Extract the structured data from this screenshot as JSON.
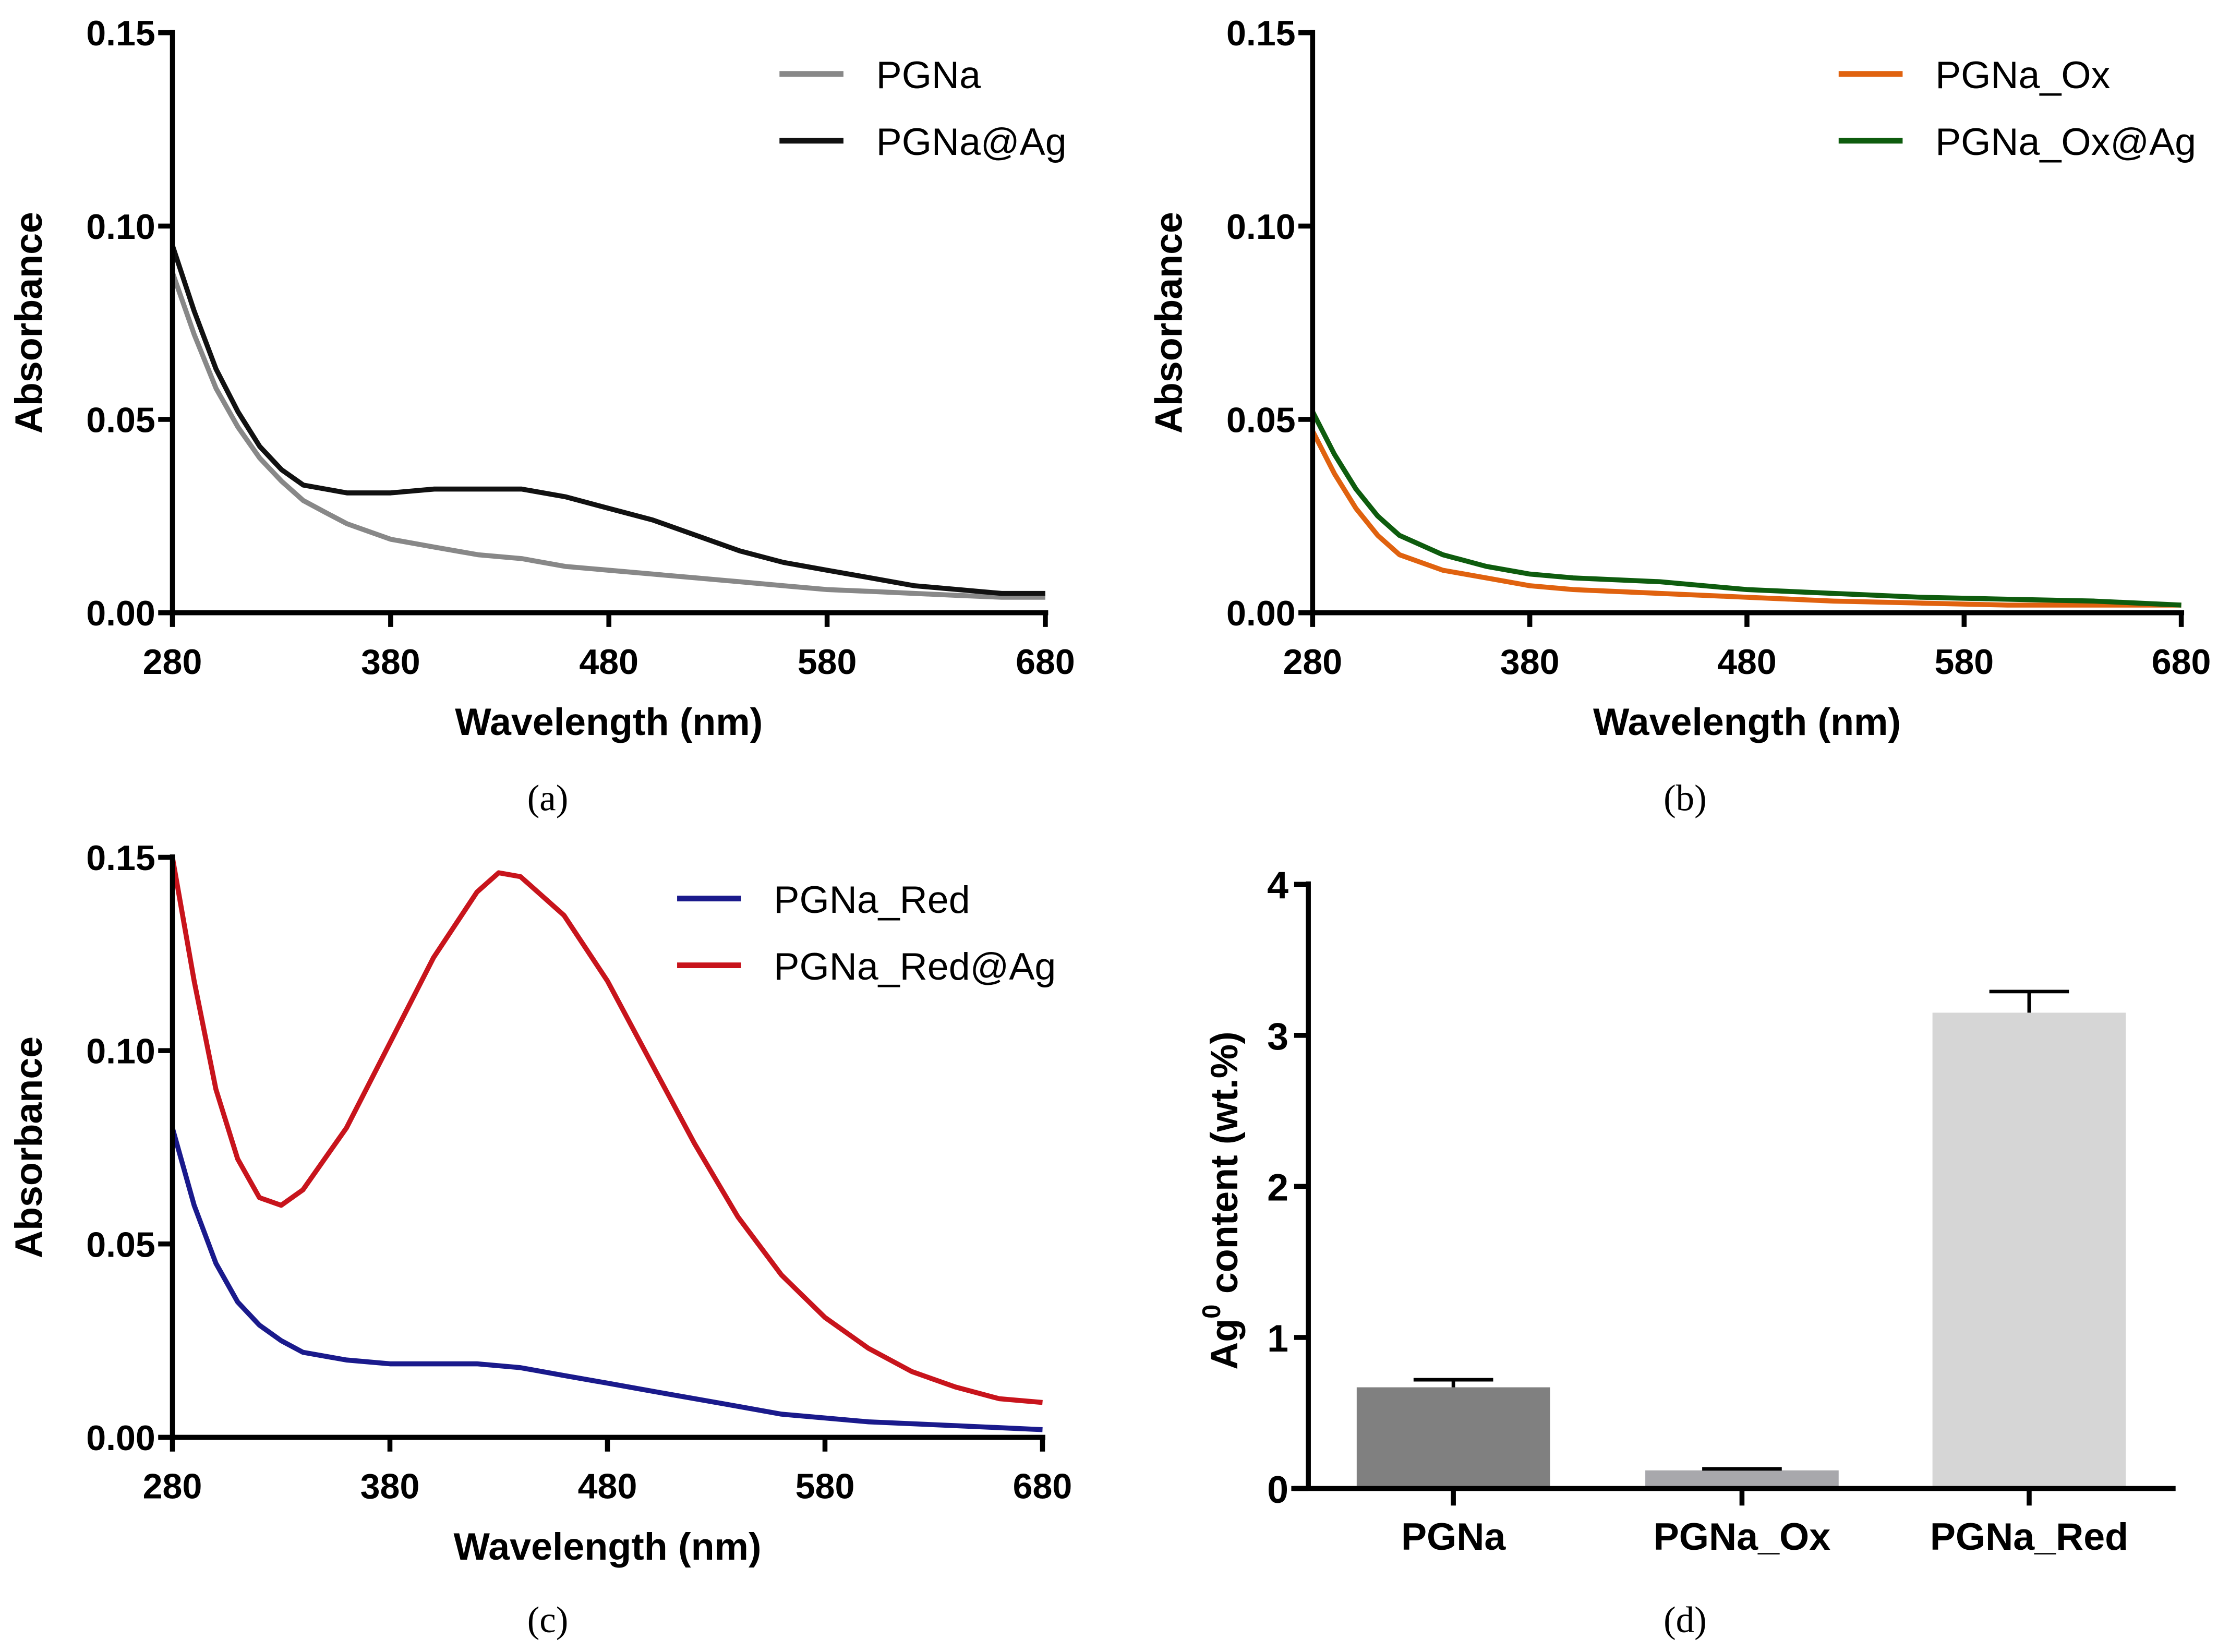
{
  "chart_data": [
    {
      "panel": "(a)",
      "type": "line",
      "xlabel": "Wavelength (nm)",
      "ylabel": "Absorbance",
      "xlim": [
        280,
        680
      ],
      "ylim": [
        0,
        0.15
      ],
      "xticks": [
        "280",
        "380",
        "480",
        "580",
        "680"
      ],
      "yticks": [
        "0.00",
        "0.05",
        "0.10",
        "0.15"
      ],
      "legend": "top-right",
      "series": [
        {
          "name": "PGNa",
          "color": "#888888",
          "x": [
            280,
            290,
            300,
            310,
            320,
            330,
            340,
            350,
            360,
            380,
            400,
            420,
            440,
            460,
            480,
            500,
            520,
            540,
            560,
            580,
            600,
            620,
            640,
            660,
            680
          ],
          "y": [
            0.088,
            0.072,
            0.058,
            0.048,
            0.04,
            0.034,
            0.029,
            0.026,
            0.023,
            0.019,
            0.017,
            0.015,
            0.014,
            0.012,
            0.011,
            0.01,
            0.009,
            0.008,
            0.007,
            0.006,
            0.0055,
            0.005,
            0.0045,
            0.004,
            0.004
          ]
        },
        {
          "name": "PGNa@Ag",
          "color": "#111111",
          "x": [
            280,
            290,
            300,
            310,
            320,
            330,
            340,
            360,
            380,
            400,
            420,
            440,
            460,
            480,
            500,
            520,
            540,
            560,
            580,
            600,
            620,
            640,
            660,
            680
          ],
          "y": [
            0.095,
            0.078,
            0.063,
            0.052,
            0.043,
            0.037,
            0.033,
            0.031,
            0.031,
            0.032,
            0.032,
            0.032,
            0.03,
            0.027,
            0.024,
            0.02,
            0.016,
            0.013,
            0.011,
            0.009,
            0.007,
            0.006,
            0.005,
            0.005
          ]
        }
      ]
    },
    {
      "panel": "(b)",
      "type": "line",
      "xlabel": "Wavelength (nm)",
      "ylabel": "Absorbance",
      "xlim": [
        280,
        680
      ],
      "ylim": [
        0,
        0.15
      ],
      "xticks": [
        "280",
        "380",
        "480",
        "580",
        "680"
      ],
      "yticks": [
        "0.00",
        "0.05",
        "0.10",
        "0.15"
      ],
      "legend": "top-right",
      "series": [
        {
          "name": "PGNa_Ox",
          "color": "#e0620f",
          "x": [
            280,
            290,
            300,
            310,
            320,
            340,
            360,
            380,
            400,
            440,
            480,
            520,
            560,
            600,
            640,
            680
          ],
          "y": [
            0.047,
            0.036,
            0.027,
            0.02,
            0.015,
            0.011,
            0.009,
            0.007,
            0.006,
            0.005,
            0.004,
            0.003,
            0.0025,
            0.002,
            0.002,
            0.002
          ]
        },
        {
          "name": "PGNa_Ox@Ag",
          "color": "#0e5c0e",
          "x": [
            280,
            290,
            300,
            310,
            320,
            340,
            360,
            380,
            400,
            440,
            480,
            520,
            560,
            600,
            640,
            680
          ],
          "y": [
            0.052,
            0.041,
            0.032,
            0.025,
            0.02,
            0.015,
            0.012,
            0.01,
            0.009,
            0.008,
            0.006,
            0.005,
            0.004,
            0.0035,
            0.003,
            0.002
          ]
        }
      ]
    },
    {
      "panel": "(c)",
      "type": "line",
      "xlabel": "Wavelength (nm)",
      "ylabel": "Absorbance",
      "xlim": [
        280,
        680
      ],
      "ylim": [
        0,
        0.15
      ],
      "xticks": [
        "280",
        "380",
        "480",
        "580",
        "680"
      ],
      "yticks": [
        "0.00",
        "0.05",
        "0.10",
        "0.15"
      ],
      "legend": "top-right",
      "series": [
        {
          "name": "PGNa_Red",
          "color": "#1a1a8c",
          "x": [
            280,
            290,
            300,
            310,
            320,
            330,
            340,
            360,
            380,
            400,
            420,
            440,
            460,
            480,
            500,
            520,
            540,
            560,
            580,
            600,
            640,
            680
          ],
          "y": [
            0.08,
            0.06,
            0.045,
            0.035,
            0.029,
            0.025,
            0.022,
            0.02,
            0.019,
            0.019,
            0.019,
            0.018,
            0.016,
            0.014,
            0.012,
            0.01,
            0.008,
            0.006,
            0.005,
            0.004,
            0.003,
            0.002
          ]
        },
        {
          "name": "PGNa_Red@Ag",
          "color": "#c8141c",
          "x": [
            280,
            290,
            300,
            310,
            320,
            330,
            340,
            360,
            380,
            400,
            420,
            430,
            440,
            460,
            480,
            500,
            520,
            540,
            560,
            580,
            600,
            620,
            640,
            660,
            680
          ],
          "y": [
            0.15,
            0.118,
            0.09,
            0.072,
            0.062,
            0.06,
            0.064,
            0.08,
            0.102,
            0.124,
            0.141,
            0.146,
            0.145,
            0.135,
            0.118,
            0.097,
            0.076,
            0.057,
            0.042,
            0.031,
            0.023,
            0.017,
            0.013,
            0.01,
            0.009
          ]
        }
      ]
    },
    {
      "panel": "(d)",
      "type": "bar",
      "ylabel": "Ag0 content (wt.%)",
      "ylabel_main": "Ag",
      "ylabel_sup": "0",
      "ylabel_rest": " content (wt.%)",
      "ylim": [
        0,
        4
      ],
      "yticks": [
        "0",
        "1",
        "2",
        "3",
        "4"
      ],
      "categories": [
        "PGNa",
        "PGNa_Ox",
        "PGNa_Red"
      ],
      "values": [
        0.67,
        0.12,
        3.15
      ],
      "errors": [
        0.05,
        0.01,
        0.14
      ],
      "colors": [
        "#808080",
        "#a8a8ac",
        "#d6d6d6"
      ]
    }
  ]
}
